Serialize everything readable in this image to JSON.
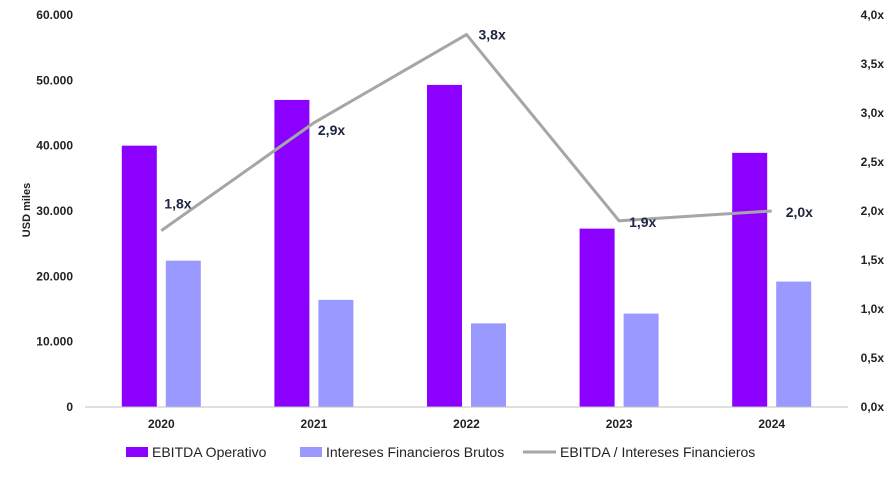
{
  "chart_data": {
    "type": "bar",
    "categories": [
      "2020",
      "2021",
      "2022",
      "2023",
      "2024"
    ],
    "ylabel": "USD miles",
    "ylim": [
      0,
      60000
    ],
    "y_ticks": [
      "0",
      "10.000",
      "20.000",
      "30.000",
      "40.000",
      "50.000",
      "60.000"
    ],
    "y2lim": [
      0,
      4.0
    ],
    "y2_ticks": [
      "0,0x",
      "0,5x",
      "1,0x",
      "1,5x",
      "2,0x",
      "2,5x",
      "3,0x",
      "3,5x",
      "4,0x"
    ],
    "grid": false,
    "legend_position": "bottom",
    "series": [
      {
        "name": "EBITDA Operativo",
        "kind": "bar",
        "axis": "left",
        "color": "#8b00ff",
        "values": [
          40000,
          47000,
          49300,
          27300,
          38900
        ]
      },
      {
        "name": "Intereses Financieros Brutos",
        "kind": "bar",
        "axis": "left",
        "color": "#9999ff",
        "values": [
          22400,
          16400,
          12800,
          14300,
          19200
        ]
      },
      {
        "name": "EBITDA / Intereses Financieros",
        "kind": "line",
        "axis": "right",
        "color": "#a6a6a6",
        "values": [
          1.8,
          2.9,
          3.8,
          1.9,
          2.0
        ],
        "labels": [
          "1,8x",
          "2,9x",
          "3,8x",
          "1,9x",
          "2,0x"
        ]
      }
    ]
  }
}
